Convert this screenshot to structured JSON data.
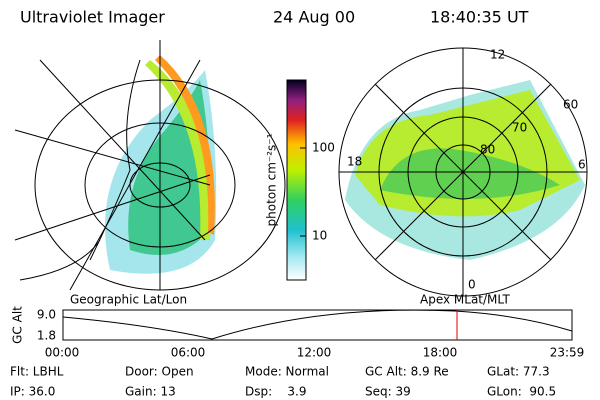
{
  "header": {
    "instrument": "Ultraviolet Imager",
    "date": "24 Aug 00",
    "time": "18:40:35 UT"
  },
  "left_map": {
    "caption": "Geographic Lat/Lon"
  },
  "colorbar": {
    "label": "photon cm⁻²s⁻¹",
    "ticks": [
      "100",
      "10"
    ]
  },
  "right_map": {
    "caption": "Apex MLat/MLT",
    "mlt_labels": [
      "12",
      "6",
      "18",
      "0"
    ],
    "lat_labels": [
      "60",
      "70",
      "80"
    ]
  },
  "timeline": {
    "axis_label": "GC Alt",
    "y_labels": [
      "9.0",
      "1.8"
    ],
    "time_labels": [
      "00:00",
      "06:00",
      "12:00",
      "18:00",
      "23:59"
    ]
  },
  "footer": {
    "rows": [
      [
        "Flt: LBHL",
        "Door: Open",
        "Mode: Normal",
        "GC Alt: 8.9 Re",
        "GLat: 77.3"
      ],
      [
        "IP: 36.0",
        "Gain: 13",
        "Dsp:    3.9",
        "Seq: 39",
        "GLon:  90.5"
      ]
    ]
  }
}
